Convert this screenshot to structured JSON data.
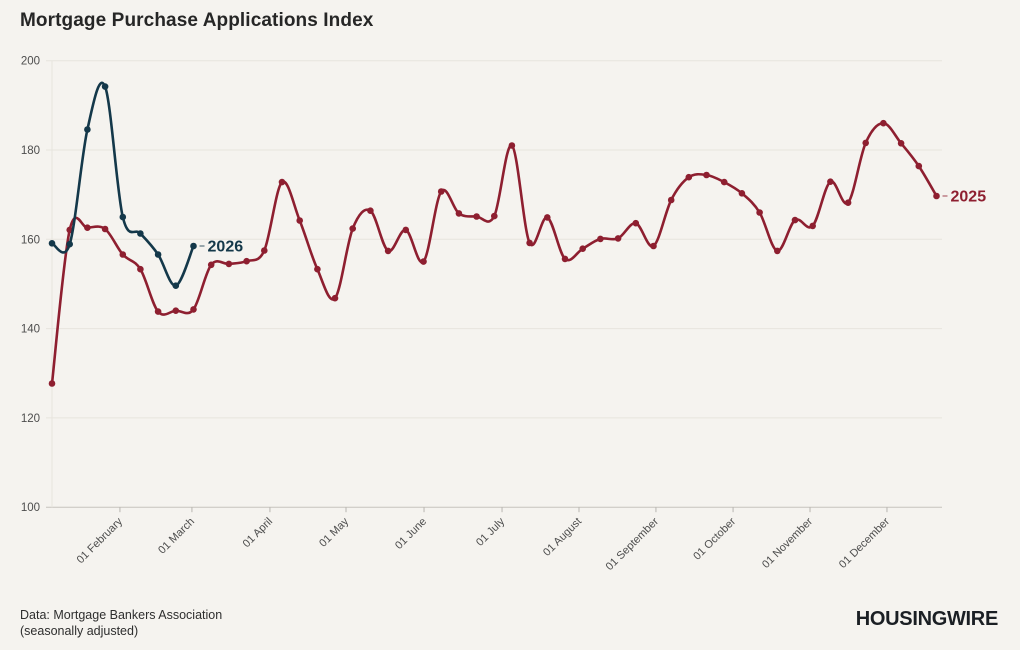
{
  "header": {
    "title": "Mortgage Purchase Applications Index"
  },
  "chart_data": {
    "type": "line",
    "title": "Mortgage Purchase Applications Index",
    "xlabel": "",
    "ylabel": "",
    "ylim": [
      100,
      200
    ],
    "y_ticks": [
      100,
      120,
      140,
      160,
      180,
      200
    ],
    "grid": "horizontal-light",
    "legend_position": "end-of-line-labels",
    "x_tick_labels": [
      "01 February",
      "01 March",
      "01 April",
      "01 May",
      "01 June",
      "01 July",
      "01 August",
      "01 September",
      "01 October",
      "01 November",
      "01 December"
    ],
    "x_tick_week_positions": [
      3.84,
      7.91,
      12.32,
      16.62,
      21.03,
      25.44,
      29.79,
      34.14,
      38.5,
      42.85,
      47.2
    ],
    "x_unit": "weeks",
    "series": [
      {
        "name": "2025",
        "color": "#8e1f30",
        "start_week": 0,
        "values": [
          127.7,
          162.1,
          162.6,
          162.3,
          156.6,
          153.3,
          143.8,
          144.0,
          144.3,
          154.3,
          154.5,
          155.1,
          157.5,
          172.8,
          164.2,
          153.3,
          146.8,
          162.4,
          166.4,
          157.4,
          162.1,
          155.0,
          170.7,
          165.8,
          165.1,
          165.2,
          181.0,
          159.2,
          164.9,
          155.6,
          157.9,
          160.1,
          160.2,
          163.6,
          158.5,
          168.8,
          173.9,
          174.4,
          172.8,
          170.3,
          166.0,
          157.4,
          164.3,
          163.0,
          172.9,
          168.2,
          181.6,
          186.0,
          181.5,
          176.4,
          169.7
        ]
      },
      {
        "name": "2026",
        "color": "#14384a",
        "start_week": 0,
        "values": [
          159.1,
          158.9,
          184.6,
          194.2,
          165.0,
          161.3,
          156.6,
          149.6,
          158.5
        ]
      }
    ]
  },
  "footer": {
    "source_line1": "Data: Mortgage Bankers Association",
    "source_line2": "(seasonally adjusted)",
    "logo": "HOUSINGWIRE"
  },
  "colors": {
    "background": "#f5f3ef",
    "series_2025": "#8e1f30",
    "series_2026": "#14384a",
    "gridline": "#e7e4de",
    "axis_line": "#c6c3be",
    "tick": "#b8b5b0",
    "axis_text": "#4d4d4d"
  }
}
